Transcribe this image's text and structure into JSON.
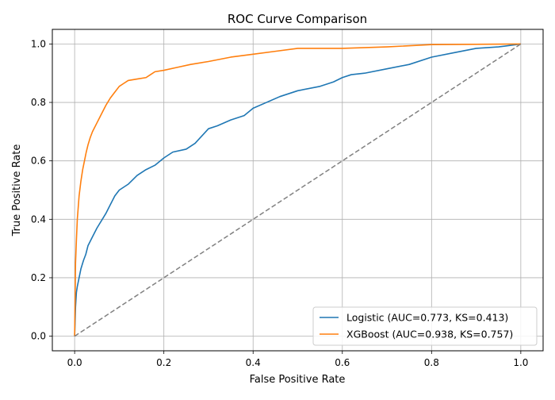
{
  "chart_data": {
    "type": "line",
    "title": "ROC Curve Comparison",
    "xlabel": "False Positive Rate",
    "ylabel": "True Positive Rate",
    "xlim": [
      -0.05,
      1.05
    ],
    "ylim": [
      -0.05,
      1.05
    ],
    "xticks": [
      0.0,
      0.2,
      0.4,
      0.6,
      0.8,
      1.0
    ],
    "yticks": [
      0.0,
      0.2,
      0.4,
      0.6,
      0.8,
      1.0
    ],
    "xtick_labels": [
      "0.0",
      "0.2",
      "0.4",
      "0.6",
      "0.8",
      "1.0"
    ],
    "ytick_labels": [
      "0.0",
      "0.2",
      "0.4",
      "0.6",
      "0.8",
      "1.0"
    ],
    "grid": true,
    "legend_position": "lower-right",
    "series": [
      {
        "name": "Logistic (AUC=0.773, KS=0.413)",
        "color": "#1f77b4",
        "style": "solid",
        "x": [
          0,
          0.002,
          0.004,
          0.006,
          0.01,
          0.014,
          0.02,
          0.025,
          0.03,
          0.04,
          0.05,
          0.06,
          0.07,
          0.08,
          0.09,
          0.1,
          0.12,
          0.14,
          0.16,
          0.18,
          0.2,
          0.22,
          0.25,
          0.27,
          0.3,
          0.32,
          0.35,
          0.38,
          0.4,
          0.43,
          0.46,
          0.5,
          0.55,
          0.58,
          0.6,
          0.62,
          0.65,
          0.7,
          0.75,
          0.8,
          0.85,
          0.9,
          0.95,
          1.0
        ],
        "y": [
          0,
          0.1,
          0.15,
          0.17,
          0.2,
          0.23,
          0.26,
          0.28,
          0.31,
          0.34,
          0.37,
          0.395,
          0.42,
          0.45,
          0.48,
          0.5,
          0.52,
          0.55,
          0.57,
          0.585,
          0.61,
          0.63,
          0.64,
          0.66,
          0.71,
          0.72,
          0.74,
          0.755,
          0.78,
          0.8,
          0.82,
          0.84,
          0.855,
          0.87,
          0.885,
          0.895,
          0.9,
          0.915,
          0.93,
          0.955,
          0.97,
          0.985,
          0.99,
          1.0
        ]
      },
      {
        "name": "XGBoost (AUC=0.938, KS=0.757)",
        "color": "#ff7f0e",
        "style": "solid",
        "x": [
          0,
          0.002,
          0.004,
          0.006,
          0.008,
          0.01,
          0.014,
          0.018,
          0.022,
          0.026,
          0.03,
          0.035,
          0.04,
          0.05,
          0.06,
          0.07,
          0.08,
          0.09,
          0.1,
          0.11,
          0.12,
          0.14,
          0.16,
          0.17,
          0.18,
          0.2,
          0.23,
          0.26,
          0.3,
          0.35,
          0.4,
          0.45,
          0.5,
          0.6,
          0.7,
          0.8,
          1.0
        ],
        "y": [
          0,
          0.25,
          0.33,
          0.4,
          0.44,
          0.48,
          0.53,
          0.57,
          0.6,
          0.63,
          0.655,
          0.68,
          0.7,
          0.73,
          0.76,
          0.79,
          0.815,
          0.835,
          0.855,
          0.865,
          0.875,
          0.88,
          0.885,
          0.895,
          0.905,
          0.91,
          0.92,
          0.93,
          0.94,
          0.955,
          0.965,
          0.975,
          0.985,
          0.985,
          0.99,
          0.998,
          1.0
        ]
      },
      {
        "name": "",
        "color": "#808080",
        "style": "dashed",
        "x": [
          0,
          1
        ],
        "y": [
          0,
          1
        ]
      }
    ],
    "legend": [
      {
        "label": "Logistic (AUC=0.773, KS=0.413)",
        "color": "#1f77b4"
      },
      {
        "label": "XGBoost (AUC=0.938, KS=0.757)",
        "color": "#ff7f0e"
      }
    ]
  }
}
